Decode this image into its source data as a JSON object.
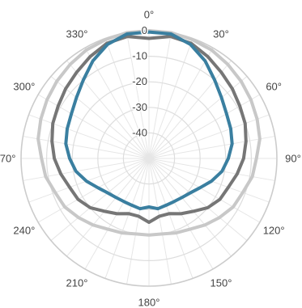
{
  "chart_data": {
    "type": "line",
    "projection": "polar",
    "title": "",
    "radial_axis": {
      "range": [
        -50,
        0
      ],
      "ticks": [
        0,
        -10,
        -20,
        -30,
        -40
      ],
      "tick_labels": [
        "0",
        "-10",
        "-20",
        "-30",
        "-40"
      ]
    },
    "angular_axis": {
      "direction": "clockwise",
      "rotation": "0° at top",
      "ticks": [
        0,
        30,
        60,
        90,
        120,
        150,
        180,
        210,
        240,
        270,
        300,
        330
      ],
      "tick_labels": [
        "0°",
        "30°",
        "60°",
        "90°",
        "120°",
        "150°",
        "180°",
        "210°",
        "240°",
        "270°",
        "300°",
        "330°"
      ],
      "grid_step_deg": 10
    },
    "grid": true,
    "series": [
      {
        "color": "#c8c8c8",
        "theta": [
          0,
          10,
          20,
          30,
          40,
          50,
          60,
          70,
          80,
          90,
          100,
          110,
          120,
          130,
          140,
          150,
          160,
          170,
          180,
          190,
          200,
          210,
          220,
          230,
          240,
          250,
          260,
          270,
          280,
          290,
          300,
          310,
          320,
          330,
          340,
          350
        ],
        "r": [
          0,
          0,
          -0.5,
          -1,
          -2,
          -3,
          -4,
          -5,
          -6,
          -8,
          -9,
          -11,
          -12,
          -14,
          -16,
          -18,
          -19,
          -20,
          -20,
          -20,
          -19,
          -18,
          -16,
          -14,
          -12,
          -11,
          -9,
          -8,
          -6,
          -5,
          -4,
          -3,
          -2,
          -1,
          -0.5,
          0
        ]
      },
      {
        "color": "#767676",
        "theta": [
          0,
          10,
          20,
          30,
          40,
          50,
          60,
          70,
          80,
          90,
          100,
          110,
          120,
          130,
          140,
          150,
          160,
          170,
          180,
          190,
          200,
          210,
          220,
          230,
          240,
          250,
          260,
          270,
          280,
          290,
          300,
          310,
          320,
          330,
          340,
          350
        ],
        "r": [
          -3,
          -1.5,
          -2,
          -4,
          -6,
          -7.5,
          -9,
          -10,
          -11.5,
          -13,
          -15,
          -17,
          -18,
          -20,
          -23,
          -25,
          -27,
          -27,
          -25,
          -27,
          -27,
          -25,
          -23,
          -20,
          -18,
          -17,
          -15,
          -13,
          -11.5,
          -10,
          -9,
          -7.5,
          -6,
          -4,
          -2,
          -1.5
        ]
      },
      {
        "color": "#3a7fa0",
        "theta": [
          0,
          10,
          20,
          30,
          40,
          50,
          60,
          70,
          80,
          90,
          100,
          110,
          120,
          130,
          140,
          150,
          160,
          170,
          180,
          190,
          200,
          210,
          220,
          230,
          240,
          250,
          260,
          270,
          280,
          290,
          300,
          310,
          320,
          330,
          340,
          350
        ],
        "r": [
          -0.5,
          -0.5,
          -2.5,
          -6,
          -10,
          -13,
          -15,
          -16,
          -17,
          -19,
          -21,
          -24,
          -27,
          -29,
          -30,
          -30.5,
          -30.5,
          -30,
          -31,
          -30,
          -30.5,
          -30.5,
          -30,
          -29,
          -27,
          -24,
          -21,
          -19,
          -17,
          -16,
          -15,
          -13,
          -10,
          -6,
          -2.5,
          -0.5
        ]
      }
    ]
  }
}
